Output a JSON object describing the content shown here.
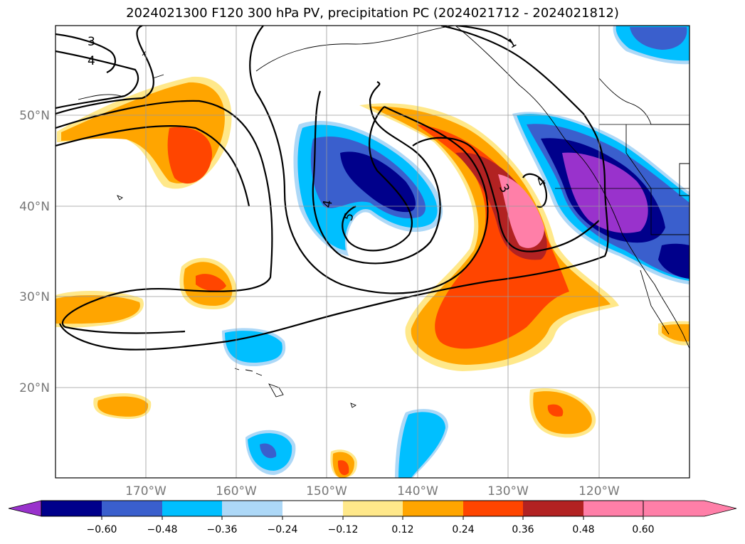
{
  "title": "2024021300 F120 300 hPa PV, precipitation PC (2024021712 - 2024021812)",
  "lat_labels": [
    "50°N",
    "40°N",
    "30°N",
    "20°N"
  ],
  "lon_labels": [
    "170°W",
    "160°W",
    "150°W",
    "140°W",
    "130°W",
    "120°W"
  ],
  "contour_labels": [
    "3",
    "4",
    "1",
    "3",
    "4",
    "4",
    "5"
  ],
  "colorbar": {
    "ticks": [
      "−0.60",
      "−0.48",
      "−0.36",
      "−0.24",
      "−0.12",
      "0.12",
      "0.24",
      "0.36",
      "0.48",
      "0.60"
    ],
    "colors": [
      "#9932cc",
      "#00008b",
      "#3a5fcd",
      "#00bfff",
      "#add8f7",
      "#ffffff",
      "#ffe88a",
      "#ffa500",
      "#ff4500",
      "#b22222",
      "#ff7fa8"
    ]
  }
}
